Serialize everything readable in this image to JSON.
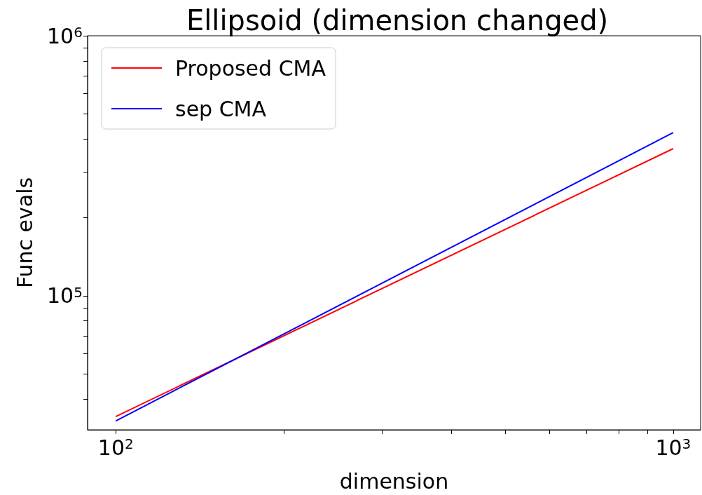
{
  "chart_data": {
    "type": "line",
    "title": "Ellipsoid (dimension changed)",
    "xlabel": "dimension",
    "ylabel": "Func evals",
    "x": [
      100,
      1000
    ],
    "series": [
      {
        "name": "Proposed CMA",
        "color": "#ff0000",
        "values": [
          34300,
          368000
        ]
      },
      {
        "name": "sep CMA",
        "color": "#0000ff",
        "values": [
          33000,
          424000
        ]
      }
    ],
    "log": "xy",
    "xlim": [
      89,
      1120
    ],
    "ylim": [
      30500,
      1000000
    ],
    "xticks": [
      {
        "value": 100,
        "label": "10$^{2}$"
      },
      {
        "value": 200,
        "label": null
      },
      {
        "value": 300,
        "label": null
      },
      {
        "value": 400,
        "label": null
      },
      {
        "value": 500,
        "label": null
      },
      {
        "value": 600,
        "label": null
      },
      {
        "value": 700,
        "label": null
      },
      {
        "value": 800,
        "label": null
      },
      {
        "value": 900,
        "label": null
      },
      {
        "value": 1000,
        "label": "10$^{3}$"
      }
    ],
    "yticks": [
      {
        "value": 40000,
        "label": null
      },
      {
        "value": 50000,
        "label": null
      },
      {
        "value": 60000,
        "label": null
      },
      {
        "value": 70000,
        "label": null
      },
      {
        "value": 80000,
        "label": null
      },
      {
        "value": 90000,
        "label": null
      },
      {
        "value": 100000,
        "label": "10$^{5}$"
      },
      {
        "value": 200000,
        "label": null
      },
      {
        "value": 300000,
        "label": null
      },
      {
        "value": 400000,
        "label": null
      },
      {
        "value": 500000,
        "label": null
      },
      {
        "value": 600000,
        "label": null
      },
      {
        "value": 700000,
        "label": null
      },
      {
        "value": 800000,
        "label": null
      },
      {
        "value": 900000,
        "label": null
      },
      {
        "value": 1000000,
        "label": "10$^{6}$"
      }
    ],
    "grid": false,
    "legend": "top left",
    "marker": "none",
    "line_style": "solid"
  }
}
